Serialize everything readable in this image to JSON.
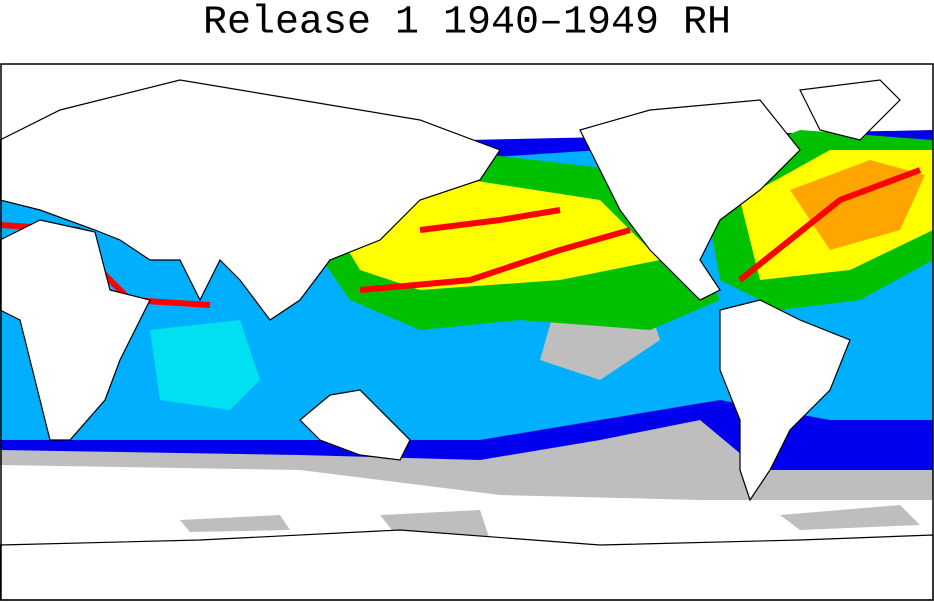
{
  "title": "Release 1 1940–1949 RH"
}
